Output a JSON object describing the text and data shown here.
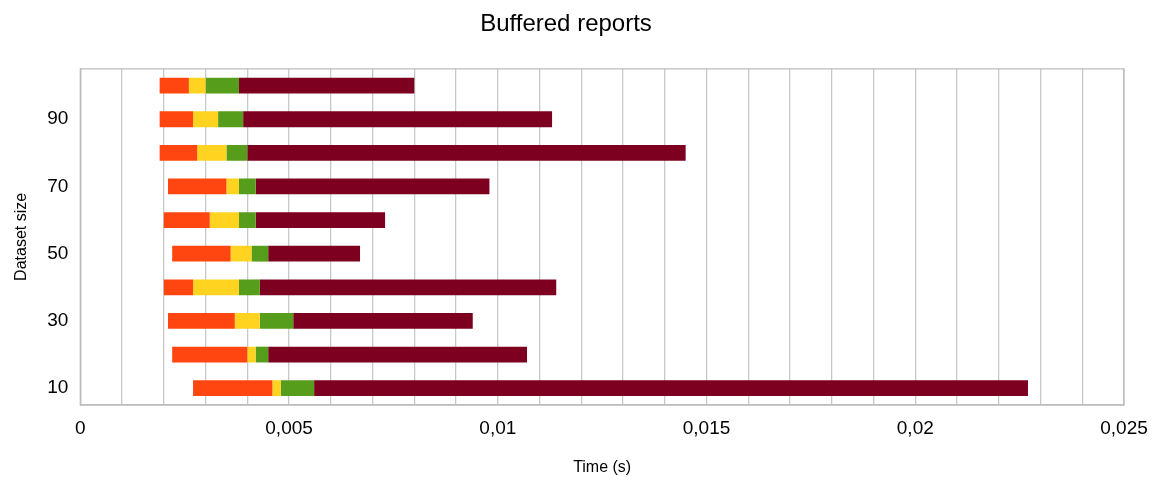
{
  "chart_data": {
    "type": "bar",
    "orientation": "horizontal",
    "title": "Buffered reports",
    "xlabel": "Time (s)",
    "ylabel": "Dataset size",
    "categories": [
      null,
      "90",
      null,
      "70",
      null,
      "50",
      null,
      "30",
      null,
      "10"
    ],
    "series": [
      {
        "color": "#ff4611",
        "base": [
          0.0019,
          0.0019,
          0.0019,
          0.0021,
          0.002,
          0.0022,
          0.002,
          0.0021,
          0.0022,
          0.0027
        ],
        "values": [
          0.0007,
          0.0008,
          0.0009,
          0.0014,
          0.0011,
          0.0014,
          0.0007,
          0.0016,
          0.0018,
          0.0019
        ]
      },
      {
        "color": "#ffd320",
        "base": [
          0.0026,
          0.0027,
          0.0028,
          0.0035,
          0.0031,
          0.0036,
          0.0027,
          0.0037,
          0.004,
          0.0046
        ],
        "values": [
          0.0004,
          0.0006,
          0.0007,
          0.0003,
          0.0007,
          0.0005,
          0.0011,
          0.0006,
          0.0002,
          0.0002
        ]
      },
      {
        "color": "#579d1c",
        "base": [
          0.003,
          0.0033,
          0.0035,
          0.0038,
          0.0038,
          0.0041,
          0.0038,
          0.0043,
          0.0042,
          0.0048
        ],
        "values": [
          0.0008,
          0.0006,
          0.0005,
          0.0004,
          0.0004,
          0.0004,
          0.0005,
          0.0008,
          0.0003,
          0.0008
        ]
      },
      {
        "color": "#7e0021",
        "base": [
          0.0038,
          0.0039,
          0.004,
          0.0042,
          0.0042,
          0.0045,
          0.0043,
          0.0051,
          0.0045,
          0.0056
        ],
        "values": [
          0.0042,
          0.0074,
          0.0105,
          0.0056,
          0.0031,
          0.0022,
          0.0071,
          0.0043,
          0.0062,
          0.0171
        ]
      }
    ],
    "xlim": [
      0,
      0.025
    ],
    "xticks": [
      0,
      {
        "value": 0.001,
        "label": null
      },
      {
        "value": 0.002,
        "label": null
      },
      {
        "value": 0.003,
        "label": null
      },
      {
        "value": 0.004,
        "label": null
      },
      {
        "value": 0.005,
        "label": "0,005"
      },
      {
        "value": 0.006,
        "label": null
      },
      {
        "value": 0.007,
        "label": null
      },
      {
        "value": 0.008,
        "label": null
      },
      {
        "value": 0.009,
        "label": null
      },
      {
        "value": 0.01,
        "label": "0,01"
      },
      {
        "value": 0.011,
        "label": null
      },
      {
        "value": 0.012,
        "label": null
      },
      {
        "value": 0.013,
        "label": null
      },
      {
        "value": 0.014,
        "label": null
      },
      {
        "value": 0.015,
        "label": "0,015"
      },
      {
        "value": 0.016,
        "label": null
      },
      {
        "value": 0.017,
        "label": null
      },
      {
        "value": 0.018,
        "label": null
      },
      {
        "value": 0.019,
        "label": null
      },
      {
        "value": 0.02,
        "label": "0,02"
      },
      {
        "value": 0.021,
        "label": null
      },
      {
        "value": 0.022,
        "label": null
      },
      {
        "value": 0.023,
        "label": null
      },
      {
        "value": 0.024,
        "label": null
      },
      {
        "value": 0.025,
        "label": "0,025"
      }
    ],
    "grid": "x",
    "legend": false
  }
}
